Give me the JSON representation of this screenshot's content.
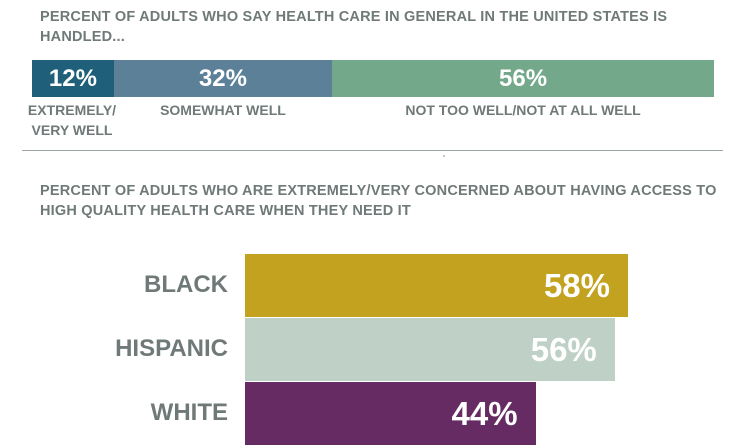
{
  "chart_data": [
    {
      "type": "bar",
      "title": "PERCENT OF ADULTS WHO SAY HEALTH CARE IN GENERAL IN THE UNITED STATES IS HANDLED...",
      "stacked": true,
      "orientation": "horizontal",
      "series": [
        {
          "name": "EXTREMELY/ VERY WELL",
          "value": 12,
          "label": "12%",
          "color": "#1f5f7a"
        },
        {
          "name": "SOMEWHAT WELL",
          "value": 32,
          "label": "32%",
          "color": "#5b8098"
        },
        {
          "name": "NOT TOO WELL/NOT AT ALL WELL",
          "value": 56,
          "label": "56%",
          "color": "#73a88b"
        }
      ],
      "xlim": [
        0,
        100
      ]
    },
    {
      "type": "bar",
      "title": "PERCENT OF ADULTS WHO ARE EXTREMELY/VERY CONCERNED ABOUT HAVING ACCESS TO HIGH QUALITY HEALTH CARE WHEN THEY NEED IT",
      "orientation": "horizontal",
      "categories": [
        "BLACK",
        "HISPANIC",
        "WHITE"
      ],
      "values": [
        58,
        56,
        44
      ],
      "labels": [
        "58%",
        "56%",
        "44%"
      ],
      "colors": [
        "#c3a21f",
        "#bfd0c6",
        "#652b62"
      ],
      "xlim": [
        0,
        100
      ]
    }
  ]
}
